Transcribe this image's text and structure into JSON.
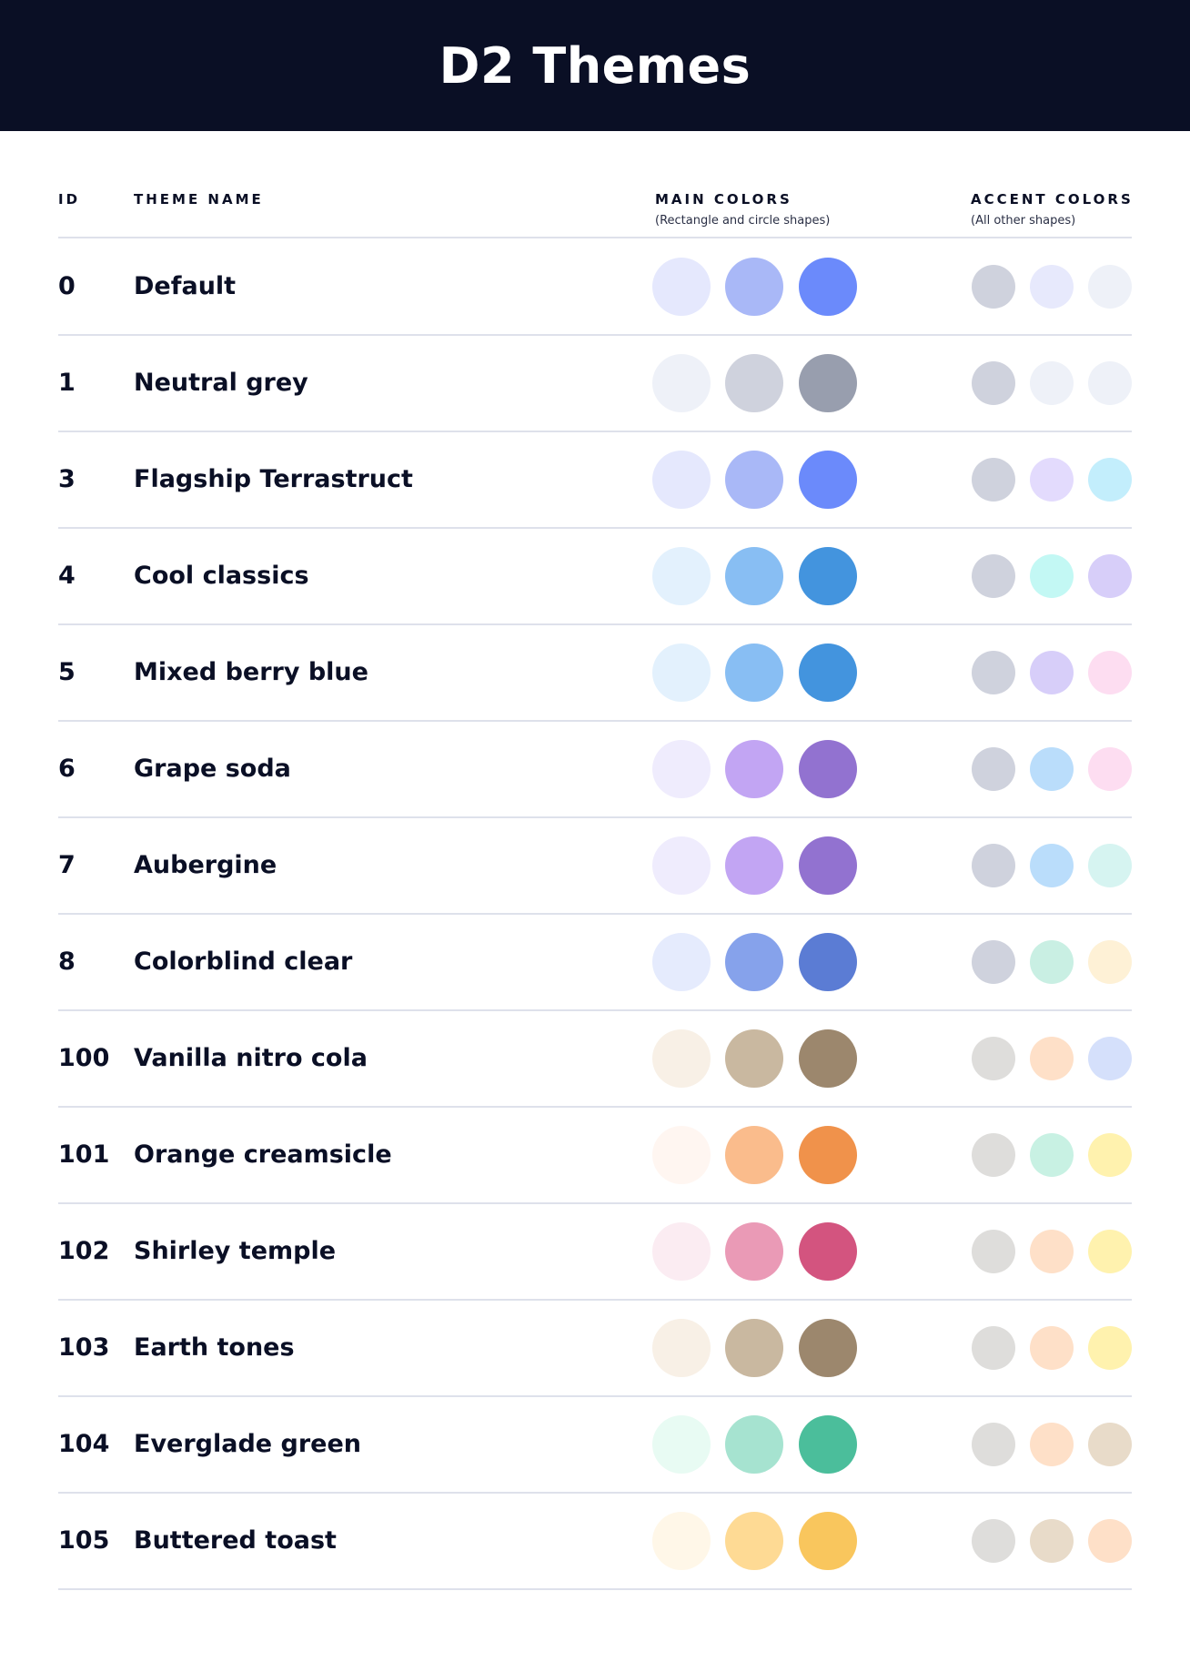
{
  "title": "D2 Themes",
  "columns": {
    "id": "ID",
    "name": "THEME NAME",
    "main": "MAIN COLORS",
    "main_sub": "(Rectangle and circle shapes)",
    "accent": "ACCENT COLORS",
    "accent_sub": "(All other shapes)"
  },
  "themes": [
    {
      "id": "0",
      "name": "Default",
      "main": [
        "#E5E8FD",
        "#A9B8F7",
        "#6B8AFB"
      ],
      "accent": [
        "#CFD2DD",
        "#E7E9FC",
        "#EEF1F8"
      ]
    },
    {
      "id": "1",
      "name": "Neutral grey",
      "main": [
        "#EEF1F8",
        "#CFD2DD",
        "#989EAE"
      ],
      "accent": [
        "#CFD2DD",
        "#EEF1F8",
        "#EEF1F8"
      ]
    },
    {
      "id": "3",
      "name": "Flagship Terrastruct",
      "main": [
        "#E5E8FD",
        "#A9B8F7",
        "#6B8AFB"
      ],
      "accent": [
        "#CFD2DD",
        "#E3DBFD",
        "#C3EEFC"
      ]
    },
    {
      "id": "4",
      "name": "Cool classics",
      "main": [
        "#E3F1FD",
        "#88BEF3",
        "#4394DE"
      ],
      "accent": [
        "#CFD2DD",
        "#C3F8F4",
        "#D7CEF9"
      ]
    },
    {
      "id": "5",
      "name": "Mixed berry blue",
      "main": [
        "#E3F1FD",
        "#88BEF3",
        "#4394DE"
      ],
      "accent": [
        "#CFD2DD",
        "#D7CEF9",
        "#FDDDF1"
      ]
    },
    {
      "id": "6",
      "name": "Grape soda",
      "main": [
        "#EFECFD",
        "#C2A5F3",
        "#9272D0"
      ],
      "accent": [
        "#CFD2DD",
        "#BADDFB",
        "#FDDDF1"
      ]
    },
    {
      "id": "7",
      "name": "Aubergine",
      "main": [
        "#EFECFD",
        "#C2A5F3",
        "#9272D0"
      ],
      "accent": [
        "#CFD2DD",
        "#BADDFB",
        "#D6F4F1"
      ]
    },
    {
      "id": "8",
      "name": "Colorblind clear",
      "main": [
        "#E5EBFD",
        "#86A2EB",
        "#5B7CD4"
      ],
      "accent": [
        "#CFD2DD",
        "#C9EFE3",
        "#FEF1D6"
      ]
    },
    {
      "id": "100",
      "name": "Vanilla nitro cola",
      "main": [
        "#F8F0E6",
        "#C9B8A0",
        "#9C876D"
      ],
      "accent": [
        "#DEDDDB",
        "#FEE0C8",
        "#D5E0FB"
      ]
    },
    {
      "id": "101",
      "name": "Orange creamsicle",
      "main": [
        "#FFF6F1",
        "#FABC8C",
        "#F0924B"
      ],
      "accent": [
        "#DEDDDB",
        "#C8F1E3",
        "#FFF2AE"
      ]
    },
    {
      "id": "102",
      "name": "Shirley temple",
      "main": [
        "#FBECF2",
        "#EA9AB6",
        "#D3547F"
      ],
      "accent": [
        "#DEDDDB",
        "#FEE0C8",
        "#FFF2AE"
      ]
    },
    {
      "id": "103",
      "name": "Earth tones",
      "main": [
        "#F8F0E6",
        "#C9B8A0",
        "#9C876D"
      ],
      "accent": [
        "#DEDDDB",
        "#FEE0C8",
        "#FFF2AE"
      ]
    },
    {
      "id": "104",
      "name": "Everglade green",
      "main": [
        "#E8FBF3",
        "#A6E3D0",
        "#4BBE9B"
      ],
      "accent": [
        "#DEDDDB",
        "#FEE0C8",
        "#E8DBC9"
      ]
    },
    {
      "id": "105",
      "name": "Buttered toast",
      "main": [
        "#FFF7E8",
        "#FEDA94",
        "#F9C65D"
      ],
      "accent": [
        "#DEDDDB",
        "#E8DBC9",
        "#FEE0C8"
      ]
    }
  ]
}
